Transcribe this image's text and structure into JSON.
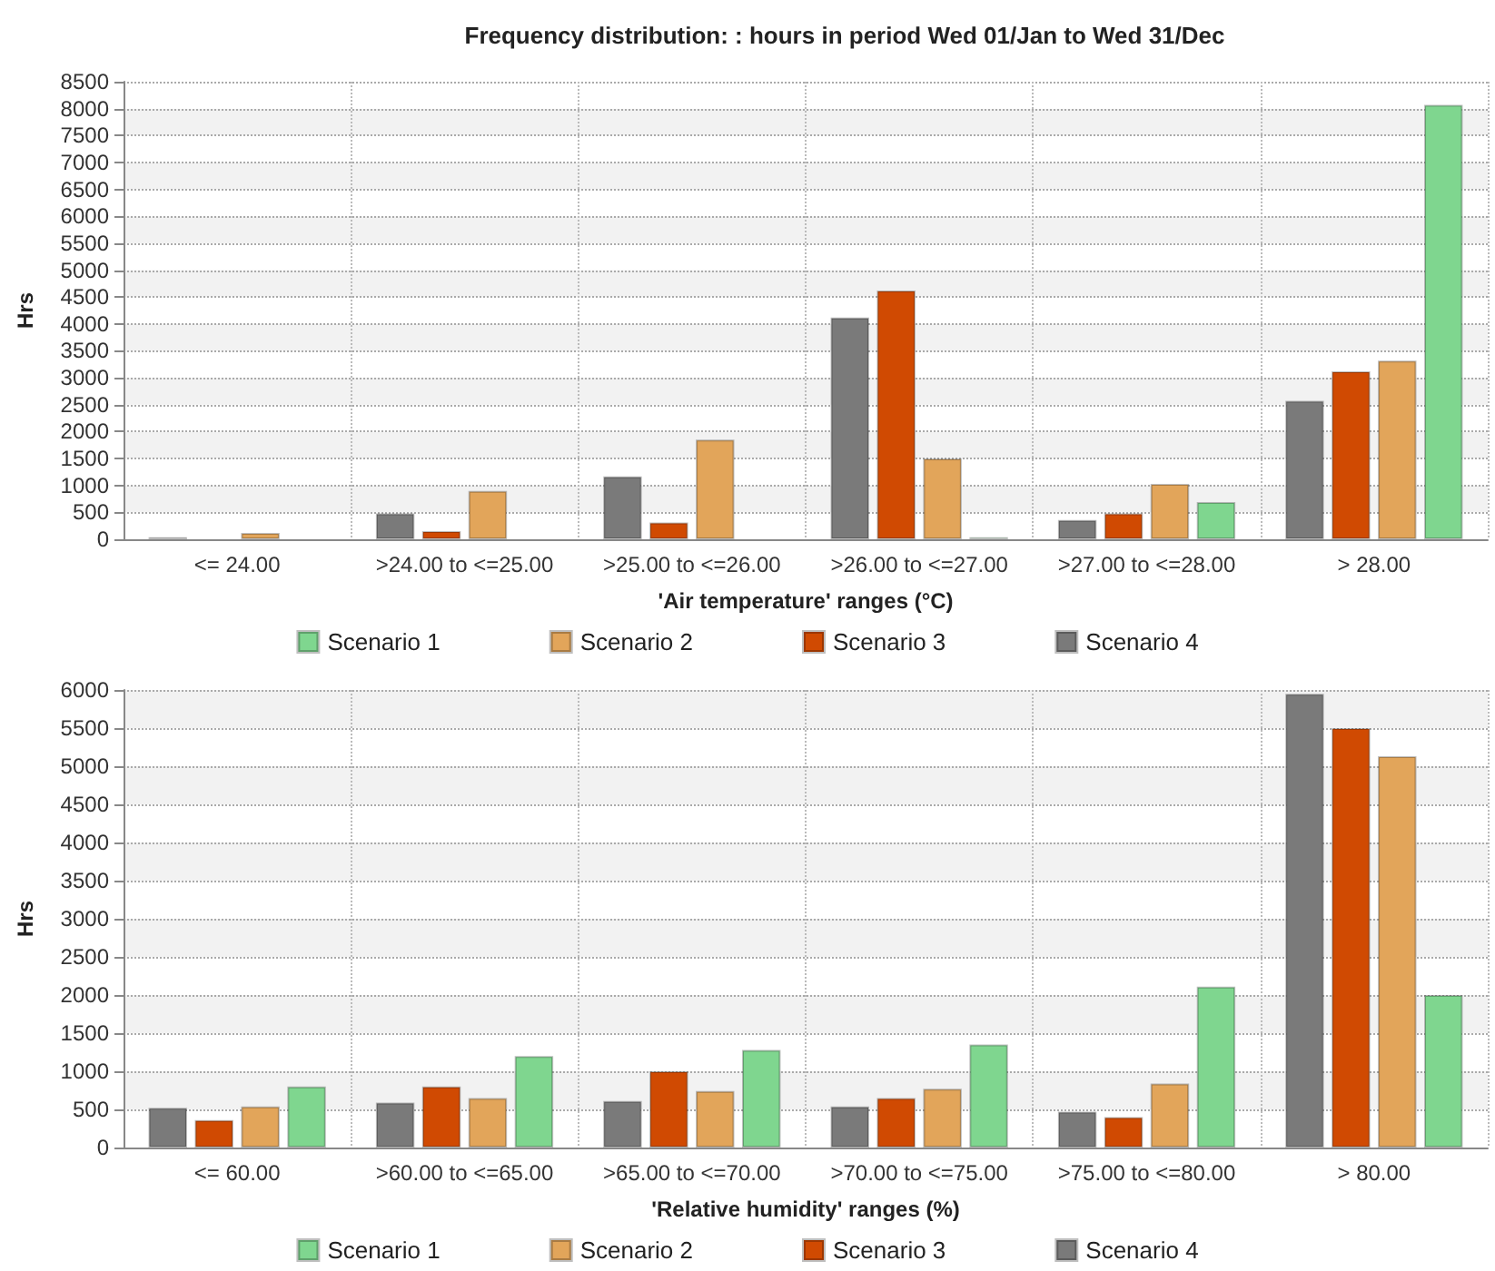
{
  "chart_data": [
    {
      "type": "bar",
      "title": "Frequency distribution: : hours in period Wed 01/Jan to Wed 31/Dec",
      "xlabel": "'Air temperature' ranges (°C)",
      "ylabel": "Hrs",
      "categories": [
        "<= 24.00",
        ">24.00 to <=25.00",
        ">25.00 to <=26.00",
        ">26.00 to <=27.00",
        ">27.00 to <=28.00",
        "> 28.00"
      ],
      "series": [
        {
          "name": "Scenario 1",
          "color": "#7fd68f",
          "values": [
            null,
            null,
            null,
            40,
            690,
            8070
          ]
        },
        {
          "name": "Scenario 2",
          "color": "#e2a55a",
          "values": [
            120,
            900,
            1850,
            1500,
            1030,
            3320
          ]
        },
        {
          "name": "Scenario 3",
          "color": "#d04a02",
          "values": [
            null,
            150,
            310,
            4620,
            480,
            3120
          ]
        },
        {
          "name": "Scenario 4",
          "color": "#7a7a7a",
          "values": [
            40,
            480,
            1170,
            4120,
            360,
            2570
          ]
        }
      ],
      "ylim": [
        0,
        8500
      ],
      "yticks": [
        0,
        500,
        1000,
        1500,
        2000,
        2500,
        3000,
        3500,
        4000,
        4500,
        5000,
        5500,
        6000,
        6500,
        7000,
        7500,
        8000,
        8500
      ],
      "grid": true,
      "legend": "bottom"
    },
    {
      "type": "bar",
      "xlabel": "'Relative humidity' ranges (%)",
      "ylabel": "Hrs",
      "categories": [
        "<= 60.00",
        ">60.00 to <=65.00",
        ">65.00 to <=70.00",
        ">70.00 to <=75.00",
        ">75.00 to <=80.00",
        "> 80.00"
      ],
      "series": [
        {
          "name": "Scenario 1",
          "color": "#7fd68f",
          "values": [
            800,
            1200,
            1280,
            1350,
            2110,
            2000
          ]
        },
        {
          "name": "Scenario 2",
          "color": "#e2a55a",
          "values": [
            540,
            650,
            740,
            770,
            840,
            5130
          ]
        },
        {
          "name": "Scenario 3",
          "color": "#d04a02",
          "values": [
            360,
            800,
            1000,
            650,
            400,
            5500
          ]
        },
        {
          "name": "Scenario 4",
          "color": "#7a7a7a",
          "values": [
            520,
            590,
            610,
            540,
            470,
            5950
          ]
        }
      ],
      "ylim": [
        0,
        6000
      ],
      "yticks": [
        0,
        500,
        1000,
        1500,
        2000,
        2500,
        3000,
        3500,
        4000,
        4500,
        5000,
        5500,
        6000
      ],
      "grid": true,
      "legend": "bottom"
    }
  ]
}
